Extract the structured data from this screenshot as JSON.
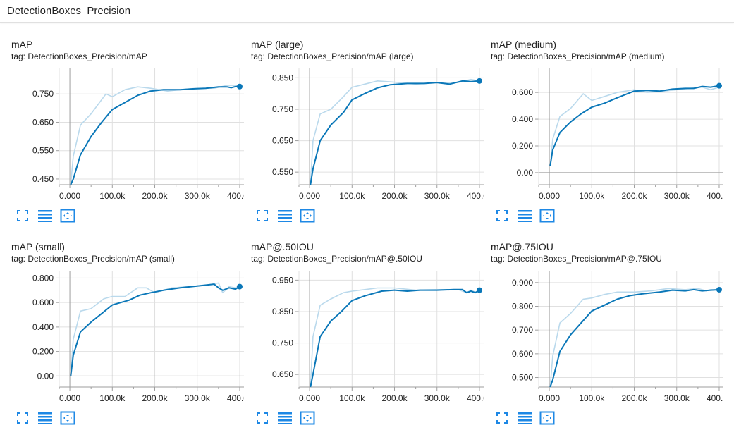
{
  "header": {
    "title": "DetectionBoxes_Precision"
  },
  "colors": {
    "smoothed": "#0a77b8",
    "raw": "#bad9ec",
    "grid": "#e0e0e0",
    "axis": "#9e9e9e",
    "icon": "#1e88e5"
  },
  "toolbar_icons": [
    "fullscreen-icon",
    "lines-icon",
    "fit-domain-icon"
  ],
  "cards": [
    {
      "title": "mAP",
      "tag": "tag: DetectionBoxes_Precision/mAP"
    },
    {
      "title": "mAP (large)",
      "tag": "tag: DetectionBoxes_Precision/mAP (large)"
    },
    {
      "title": "mAP (medium)",
      "tag": "tag: DetectionBoxes_Precision/mAP (medium)"
    },
    {
      "title": "mAP (small)",
      "tag": "tag: DetectionBoxes_Precision/mAP (small)"
    },
    {
      "title": "mAP@.50IOU",
      "tag": "tag: DetectionBoxes_Precision/mAP@.50IOU"
    },
    {
      "title": "mAP@.75IOU",
      "tag": "tag: DetectionBoxes_Precision/mAP@.75IOU"
    }
  ],
  "chart_data": [
    {
      "type": "line",
      "title": "mAP",
      "xlim": [
        -25000,
        410000
      ],
      "ylim": [
        0.43,
        0.84
      ],
      "x_ticks": [
        0,
        100000,
        200000,
        300000,
        400000
      ],
      "x_tick_labels": [
        "0.000",
        "100.0k",
        "200.0k",
        "300.0k",
        "400.0k"
      ],
      "y_ticks": [
        0.45,
        0.55,
        0.65,
        0.75
      ],
      "y_tick_labels": [
        "0.450",
        "0.550",
        "0.650",
        "0.750"
      ],
      "series": [
        {
          "style": "raw",
          "x": [
            2000,
            8000,
            25000,
            50000,
            85000,
            100000,
            130000,
            160000,
            190000,
            230000,
            260000,
            300000,
            340000,
            370000,
            400000
          ],
          "y": [
            0.43,
            0.53,
            0.64,
            0.68,
            0.75,
            0.74,
            0.765,
            0.775,
            0.77,
            0.76,
            0.765,
            0.77,
            0.77,
            0.78,
            0.78
          ]
        },
        {
          "style": "smoothed",
          "x": [
            2000,
            8000,
            25000,
            50000,
            75000,
            100000,
            130000,
            160000,
            190000,
            220000,
            260000,
            290000,
            320000,
            350000,
            370000,
            380000,
            390000,
            400000
          ],
          "y": [
            0.43,
            0.45,
            0.535,
            0.6,
            0.65,
            0.695,
            0.72,
            0.745,
            0.76,
            0.765,
            0.765,
            0.768,
            0.77,
            0.775,
            0.775,
            0.772,
            0.776,
            0.776
          ]
        }
      ],
      "end_point": {
        "x": 400000,
        "y": 0.776
      }
    },
    {
      "type": "line",
      "title": "mAP (large)",
      "xlim": [
        -25000,
        410000
      ],
      "ylim": [
        0.51,
        0.88
      ],
      "x_ticks": [
        0,
        100000,
        200000,
        300000,
        400000
      ],
      "x_tick_labels": [
        "0.000",
        "100.0k",
        "200.0k",
        "300.0k",
        "400.0k"
      ],
      "y_ticks": [
        0.55,
        0.65,
        0.75,
        0.85
      ],
      "y_tick_labels": [
        "0.550",
        "0.650",
        "0.750",
        "0.850"
      ],
      "series": [
        {
          "style": "raw",
          "x": [
            2000,
            8000,
            25000,
            50000,
            80000,
            100000,
            130000,
            160000,
            200000,
            250000,
            300000,
            350000,
            380000,
            400000
          ],
          "y": [
            0.51,
            0.65,
            0.735,
            0.75,
            0.79,
            0.82,
            0.83,
            0.84,
            0.836,
            0.83,
            0.835,
            0.835,
            0.845,
            0.84
          ]
        },
        {
          "style": "smoothed",
          "x": [
            2000,
            8000,
            25000,
            50000,
            80000,
            100000,
            130000,
            160000,
            190000,
            230000,
            270000,
            300000,
            330000,
            360000,
            380000,
            400000
          ],
          "y": [
            0.51,
            0.56,
            0.65,
            0.7,
            0.74,
            0.78,
            0.8,
            0.818,
            0.828,
            0.832,
            0.832,
            0.835,
            0.83,
            0.84,
            0.838,
            0.84
          ]
        }
      ],
      "end_point": {
        "x": 400000,
        "y": 0.84
      }
    },
    {
      "type": "line",
      "title": "mAP (medium)",
      "xlim": [
        -25000,
        410000
      ],
      "ylim": [
        -0.09,
        0.78
      ],
      "x_ticks": [
        0,
        100000,
        200000,
        300000,
        400000
      ],
      "x_tick_labels": [
        "0.000",
        "100.0k",
        "200.0k",
        "300.0k",
        "400.0k"
      ],
      "y_ticks": [
        0.0,
        0.2,
        0.4,
        0.6
      ],
      "y_tick_labels": [
        "0.00",
        "0.200",
        "0.400",
        "0.600"
      ],
      "series": [
        {
          "style": "raw",
          "x": [
            2000,
            8000,
            25000,
            50000,
            80000,
            100000,
            130000,
            160000,
            200000,
            230000,
            270000,
            300000,
            330000,
            360000,
            380000,
            400000
          ],
          "y": [
            0.05,
            0.25,
            0.42,
            0.48,
            0.59,
            0.54,
            0.57,
            0.6,
            0.62,
            0.6,
            0.61,
            0.62,
            0.63,
            0.64,
            0.62,
            0.64
          ]
        },
        {
          "style": "smoothed",
          "x": [
            2000,
            8000,
            25000,
            50000,
            75000,
            100000,
            130000,
            160000,
            200000,
            230000,
            260000,
            290000,
            320000,
            340000,
            360000,
            380000,
            400000
          ],
          "y": [
            0.05,
            0.17,
            0.3,
            0.38,
            0.44,
            0.49,
            0.52,
            0.56,
            0.61,
            0.615,
            0.61,
            0.625,
            0.63,
            0.63,
            0.645,
            0.64,
            0.65
          ]
        }
      ],
      "end_point": {
        "x": 400000,
        "y": 0.65
      }
    },
    {
      "type": "line",
      "title": "mAP (small)",
      "xlim": [
        -25000,
        410000
      ],
      "ylim": [
        -0.09,
        0.86
      ],
      "x_ticks": [
        0,
        100000,
        200000,
        300000,
        400000
      ],
      "x_tick_labels": [
        "0.000",
        "100.0k",
        "200.0k",
        "300.0k",
        "400.0k"
      ],
      "y_ticks": [
        0.0,
        0.2,
        0.4,
        0.6,
        0.8
      ],
      "y_tick_labels": [
        "0.00",
        "0.200",
        "0.400",
        "0.600",
        "0.800"
      ],
      "series": [
        {
          "style": "raw",
          "x": [
            2000,
            8000,
            25000,
            50000,
            80000,
            100000,
            130000,
            160000,
            180000,
            200000,
            240000,
            280000,
            320000,
            350000,
            360000,
            375000,
            390000,
            400000
          ],
          "y": [
            0.0,
            0.3,
            0.53,
            0.55,
            0.63,
            0.65,
            0.65,
            0.72,
            0.72,
            0.68,
            0.72,
            0.73,
            0.74,
            0.76,
            0.68,
            0.73,
            0.72,
            0.74
          ]
        },
        {
          "style": "smoothed",
          "x": [
            2000,
            8000,
            25000,
            50000,
            75000,
            100000,
            140000,
            165000,
            190000,
            220000,
            260000,
            300000,
            340000,
            350000,
            360000,
            375000,
            390000,
            400000
          ],
          "y": [
            0.0,
            0.17,
            0.36,
            0.44,
            0.51,
            0.58,
            0.62,
            0.66,
            0.68,
            0.7,
            0.72,
            0.735,
            0.75,
            0.72,
            0.7,
            0.72,
            0.71,
            0.73
          ]
        }
      ],
      "end_point": {
        "x": 400000,
        "y": 0.73
      }
    },
    {
      "type": "line",
      "title": "mAP@.50IOU",
      "xlim": [
        -25000,
        410000
      ],
      "ylim": [
        0.61,
        0.98
      ],
      "x_ticks": [
        0,
        100000,
        200000,
        300000,
        400000
      ],
      "x_tick_labels": [
        "0.000",
        "100.0k",
        "200.0k",
        "300.0k",
        "400.0k"
      ],
      "y_ticks": [
        0.65,
        0.75,
        0.85,
        0.95
      ],
      "y_tick_labels": [
        "0.650",
        "0.750",
        "0.850",
        "0.950"
      ],
      "series": [
        {
          "style": "raw",
          "x": [
            2000,
            8000,
            25000,
            50000,
            80000,
            100000,
            130000,
            160000,
            200000,
            250000,
            300000,
            350000,
            370000,
            380000,
            390000,
            400000
          ],
          "y": [
            0.61,
            0.77,
            0.87,
            0.89,
            0.91,
            0.915,
            0.92,
            0.925,
            0.925,
            0.918,
            0.92,
            0.92,
            0.91,
            0.918,
            0.912,
            0.918
          ]
        },
        {
          "style": "smoothed",
          "x": [
            2000,
            8000,
            25000,
            50000,
            75000,
            100000,
            130000,
            170000,
            200000,
            230000,
            260000,
            300000,
            340000,
            360000,
            370000,
            380000,
            390000,
            400000
          ],
          "y": [
            0.61,
            0.65,
            0.77,
            0.82,
            0.85,
            0.885,
            0.9,
            0.915,
            0.918,
            0.915,
            0.918,
            0.918,
            0.92,
            0.92,
            0.91,
            0.915,
            0.91,
            0.918
          ]
        }
      ],
      "end_point": {
        "x": 400000,
        "y": 0.918
      }
    },
    {
      "type": "line",
      "title": "mAP@.75IOU",
      "xlim": [
        -25000,
        410000
      ],
      "ylim": [
        0.46,
        0.95
      ],
      "x_ticks": [
        0,
        100000,
        200000,
        300000,
        400000
      ],
      "x_tick_labels": [
        "0.000",
        "100.0k",
        "200.0k",
        "300.0k",
        "400.0k"
      ],
      "y_ticks": [
        0.5,
        0.6,
        0.7,
        0.8,
        0.9
      ],
      "y_tick_labels": [
        "0.500",
        "0.600",
        "0.700",
        "0.800",
        "0.900"
      ],
      "series": [
        {
          "style": "raw",
          "x": [
            2000,
            8000,
            25000,
            50000,
            80000,
            100000,
            130000,
            160000,
            200000,
            240000,
            280000,
            320000,
            350000,
            370000,
            380000,
            400000
          ],
          "y": [
            0.46,
            0.59,
            0.73,
            0.77,
            0.83,
            0.835,
            0.85,
            0.86,
            0.86,
            0.865,
            0.875,
            0.87,
            0.875,
            0.865,
            0.87,
            0.87
          ]
        },
        {
          "style": "smoothed",
          "x": [
            2000,
            8000,
            25000,
            50000,
            75000,
            100000,
            130000,
            160000,
            190000,
            220000,
            260000,
            290000,
            320000,
            340000,
            360000,
            380000,
            400000
          ],
          "y": [
            0.46,
            0.49,
            0.61,
            0.68,
            0.73,
            0.78,
            0.805,
            0.83,
            0.845,
            0.853,
            0.86,
            0.868,
            0.865,
            0.87,
            0.865,
            0.868,
            0.87
          ]
        }
      ],
      "end_point": {
        "x": 400000,
        "y": 0.87
      }
    }
  ]
}
